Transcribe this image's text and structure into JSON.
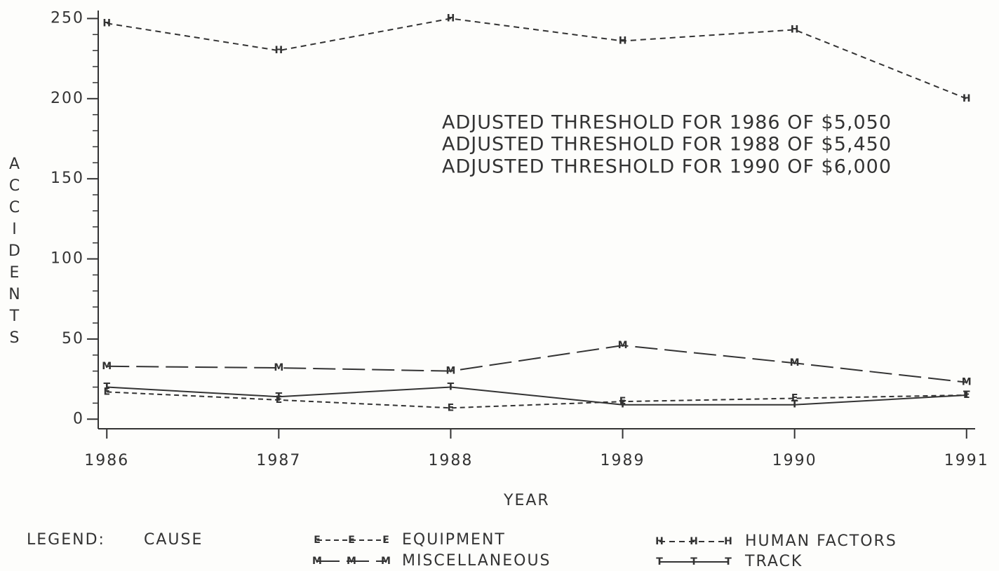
{
  "chart_data": {
    "type": "line",
    "annotations": [
      "ADJUSTED THRESHOLD FOR 1986 OF $5,050",
      "ADJUSTED THRESHOLD FOR 1988 OF $5,450",
      "ADJUSTED THRESHOLD FOR 1990 OF $6,000"
    ],
    "x_label": "YEAR",
    "y_label": "ACCIDENTS",
    "legend_title": "LEGEND:",
    "legend_subtitle": "CAUSE",
    "x": [
      1986,
      1987,
      1988,
      1989,
      1990,
      1991
    ],
    "xlim": [
      1985.95,
      1991.05
    ],
    "xticks": [
      1986,
      1987,
      1988,
      1989,
      1990,
      1991
    ],
    "ylim": [
      -6,
      255
    ],
    "yticks": [
      0,
      50,
      100,
      150,
      200,
      250
    ],
    "minor_yticks": [
      10,
      20,
      30,
      40,
      60,
      70,
      80,
      90,
      110,
      120,
      130,
      140,
      160,
      170,
      180,
      190,
      210,
      220,
      230,
      240
    ],
    "series": [
      {
        "name": "EQUIPMENT",
        "marker": "E",
        "linestyle": "short-dash",
        "color": "#333",
        "values": [
          17,
          12,
          7,
          11,
          13,
          15
        ]
      },
      {
        "name": "MISCELLANEOUS",
        "marker": "M",
        "linestyle": "long-dash",
        "color": "#333",
        "values": [
          33,
          32,
          30,
          46,
          35,
          23
        ]
      },
      {
        "name": "HUMAN FACTORS",
        "marker": "H",
        "linestyle": "dash",
        "color": "#333",
        "values": [
          247,
          230,
          250,
          236,
          243,
          200
        ]
      },
      {
        "name": "TRACK",
        "marker": "T",
        "linestyle": "solid",
        "color": "#333",
        "values": [
          20,
          14,
          20,
          9,
          9,
          15
        ]
      }
    ]
  }
}
